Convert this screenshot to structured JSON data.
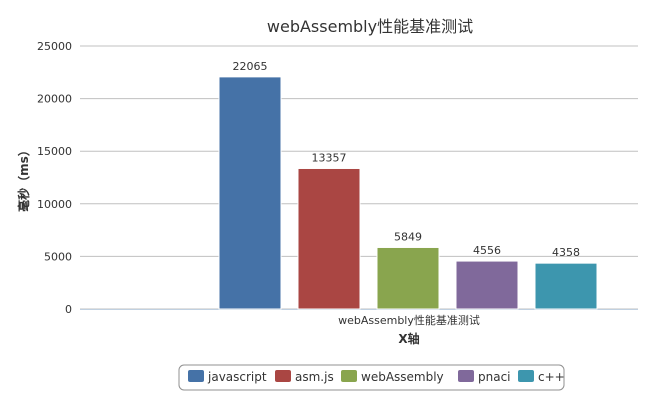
{
  "chart_data": {
    "type": "bar",
    "title": "webAssembly性能基准测试",
    "xlabel": "X轴",
    "ylabel": "毫秒（ms）",
    "categories": [
      "webAssembly性能基准测试"
    ],
    "ylim": [
      0,
      25000
    ],
    "yticks": [
      0,
      5000,
      10000,
      15000,
      20000,
      25000
    ],
    "grid": true,
    "legend_position": "bottom",
    "series": [
      {
        "name": "javascript",
        "values": [
          22065
        ],
        "color": "#4572a7"
      },
      {
        "name": "asm.js",
        "values": [
          13357
        ],
        "color": "#aa4643"
      },
      {
        "name": "webAssembly",
        "values": [
          5849
        ],
        "color": "#89a54e"
      },
      {
        "name": "pnaci",
        "values": [
          4556
        ],
        "color": "#80699b"
      },
      {
        "name": "c++",
        "values": [
          4358
        ],
        "color": "#3d96ae"
      }
    ]
  }
}
